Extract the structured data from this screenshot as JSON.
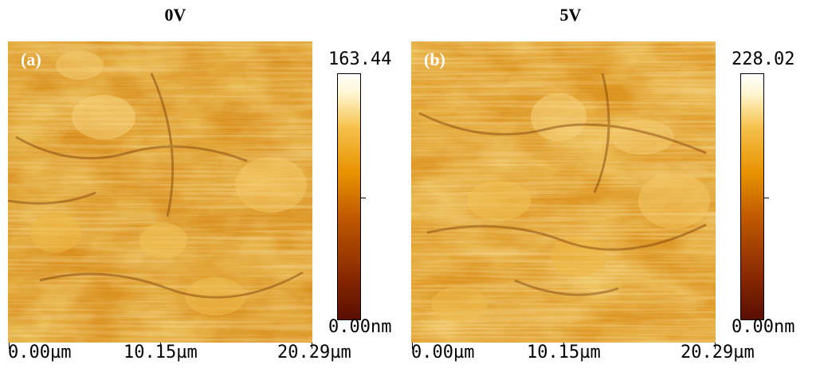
{
  "panels": [
    {
      "title": "0V",
      "label": "(a)",
      "scale_max": "163.44",
      "scale_min": "0.00",
      "scale_unit": "nm",
      "x_axis": [
        "0.00µm",
        "10.15µm",
        "20.29µm"
      ]
    },
    {
      "title": "5V",
      "label": "(b)",
      "scale_max": "228.02",
      "scale_min": "0.00",
      "scale_unit": "nm",
      "x_axis": [
        "0.00µm",
        "10.15µm",
        "20.29µm"
      ]
    }
  ],
  "colors": {
    "colormap_low": "#5a0e00",
    "colormap_mid": "#e89300",
    "colormap_high": "#ffffff",
    "scan_base": "#e0a020"
  }
}
